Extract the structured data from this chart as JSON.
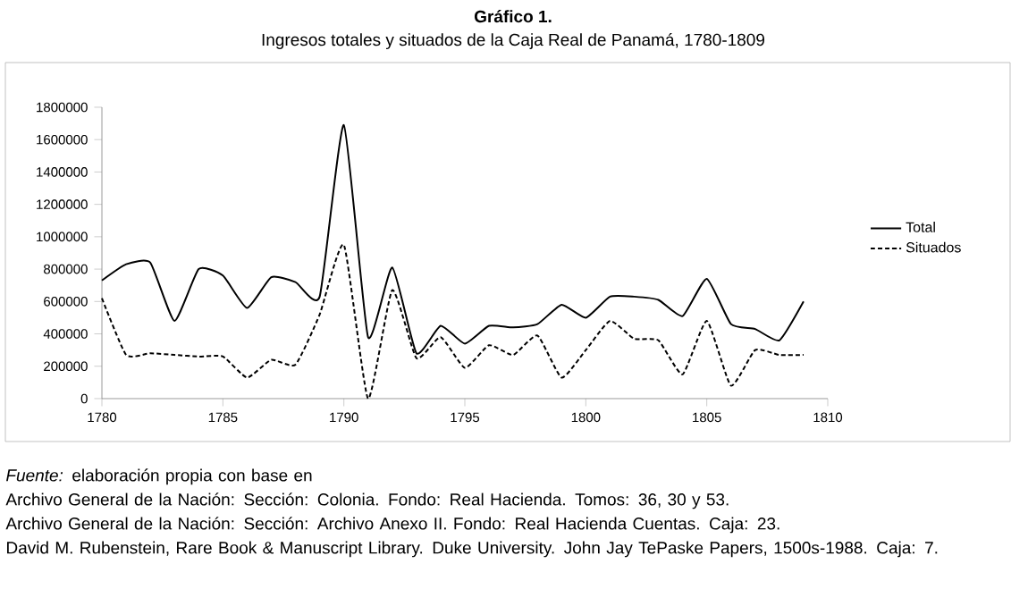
{
  "chart_data": {
    "type": "line",
    "title": "Gráfico 1.",
    "subtitle": "Ingresos totales y situados de la Caja Real de Panamá, 1780-1809",
    "x": [
      1780,
      1781,
      1782,
      1783,
      1784,
      1785,
      1786,
      1787,
      1788,
      1789,
      1790,
      1791,
      1792,
      1793,
      1794,
      1795,
      1796,
      1797,
      1798,
      1799,
      1800,
      1801,
      1802,
      1803,
      1804,
      1805,
      1806,
      1807,
      1808,
      1809
    ],
    "series": [
      {
        "name": "Total",
        "color": "#000000",
        "line_style": "solid",
        "values": [
          730000,
          830000,
          840000,
          480000,
          800000,
          760000,
          560000,
          750000,
          720000,
          630000,
          1690000,
          380000,
          810000,
          280000,
          450000,
          340000,
          450000,
          440000,
          460000,
          580000,
          500000,
          630000,
          630000,
          610000,
          510000,
          740000,
          460000,
          430000,
          360000,
          600000
        ]
      },
      {
        "name": "Situados",
        "color": "#000000",
        "line_style": "dashed",
        "values": [
          620000,
          270000,
          280000,
          270000,
          260000,
          260000,
          130000,
          240000,
          210000,
          520000,
          950000,
          0,
          670000,
          250000,
          380000,
          190000,
          330000,
          270000,
          390000,
          130000,
          300000,
          480000,
          370000,
          360000,
          150000,
          480000,
          80000,
          300000,
          270000,
          270000
        ]
      }
    ],
    "xlim": [
      1780,
      1810
    ],
    "xticks": [
      1780,
      1785,
      1790,
      1795,
      1800,
      1805,
      1810
    ],
    "ylim": [
      0,
      1800000
    ],
    "yticks": [
      0,
      200000,
      400000,
      600000,
      800000,
      1000000,
      1200000,
      1400000,
      1600000,
      1800000
    ],
    "grid": false,
    "legend": "right",
    "marker": "none",
    "annotations": [
      "*Fuente:* elaboración propia con base en",
      "Archivo General de la Nación: Sección: Colonia. Fondo: Real Hacienda. Tomos: 36, 30 y 53.",
      "Archivo General de la Nación: Sección: Archivo Anexo II. Fondo: Real Hacienda Cuentas. Caja: 23.",
      "David M. Rubenstein, Rare Book & Manuscript Library. Duke University. John Jay TePaske Papers, 1500s-1988. Caja: 7."
    ]
  }
}
